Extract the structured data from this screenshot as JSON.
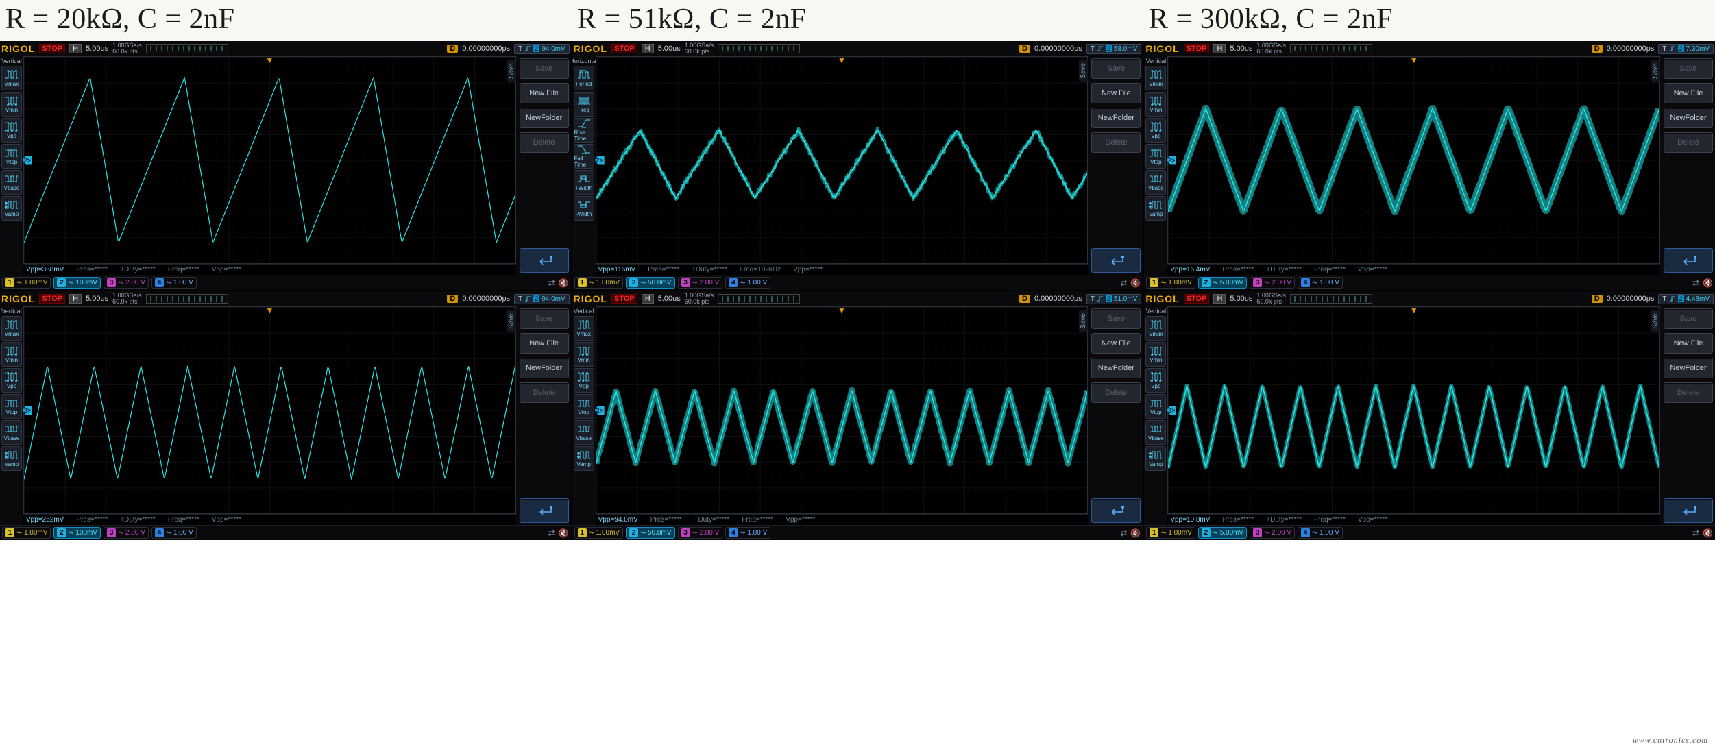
{
  "titles": [
    "R = 20kΩ, C = 2nF",
    "R = 51kΩ, C = 2nF",
    "R = 300kΩ, C = 2nF"
  ],
  "common": {
    "brand": "RIGOL",
    "run_state": "STOP",
    "h_label": "H",
    "timediv": "5.00us",
    "samp_rate": "1.00GSa/s",
    "samp_pts": "60.0k pts",
    "d_label": "D",
    "d_value": "0.00000000ps",
    "trig_T": "T",
    "trig_ch": "2",
    "buttons": {
      "save": "Save",
      "newfile": "New File",
      "newfolder": "NewFolder",
      "delete": "Delete"
    },
    "ch_prefix_coupling": "⏦",
    "channels": {
      "ch1": {
        "num": "1",
        "val": "1.00mV"
      },
      "ch3": {
        "num": "3",
        "val": "2.00 V"
      },
      "ch4": {
        "num": "4",
        "val": "1.00 V"
      }
    },
    "left_panels": {
      "vertical": {
        "header": "Vertical",
        "items": [
          "Vmax",
          "Vmin",
          "Vpp",
          "Vtop",
          "Vbase",
          "Vamp"
        ]
      },
      "horizontal": {
        "header": "Horizontal",
        "items": [
          "Period",
          "Freq",
          "Rise Time",
          "Fall Time",
          "+Width",
          "-Width"
        ]
      }
    },
    "save_label": "Save",
    "meas_placeholder": {
      "pres": "Pres=*****",
      "duty": "+Duty=*****",
      "freq": "Freq=*****",
      "vpp2": "Vpp=*****"
    }
  },
  "scopes": [
    {
      "id": "s0",
      "trigger": "94.0mV",
      "left_panel": "vertical",
      "ch2_scale": "100mV",
      "meas_vpp": "Vpp=368mV",
      "meas_freq": null,
      "waveform_color": "#26e8e8",
      "noise_amp": 0,
      "glow": 1,
      "cycles": 5.2,
      "asym": 0.7,
      "amp_rel": 0.8,
      "yoffset_rel": 0.0
    },
    {
      "id": "s1",
      "trigger": "58.0mV",
      "left_panel": "horizontal",
      "ch2_scale": "50.0mV",
      "meas_vpp": "Vpp=116mV",
      "meas_freq": "Freq=109kHz",
      "waveform_color": "#26e8e8",
      "noise_amp": 10,
      "glow": 3,
      "cycles": 6.2,
      "asym": 0.55,
      "amp_rel": 0.33,
      "yoffset_rel": 0.02
    },
    {
      "id": "s2",
      "trigger": "7.30mV",
      "left_panel": "vertical",
      "ch2_scale": "5.00mV",
      "meas_vpp": "Vpp=16.4mV",
      "meas_freq": null,
      "waveform_color": "#26e8e8",
      "noise_amp": 2,
      "glow": 9,
      "cycles": 6.5,
      "asym": 0.5,
      "amp_rel": 0.5,
      "yoffset_rel": 0.0
    },
    {
      "id": "s3",
      "trigger": "94.0mV",
      "left_panel": "vertical",
      "ch2_scale": "100mV",
      "meas_vpp": "Vpp=252mV",
      "meas_freq": null,
      "waveform_color": "#26e8e8",
      "noise_amp": 0,
      "glow": 1,
      "cycles": 10.5,
      "asym": 0.5,
      "amp_rel": 0.55,
      "yoffset_rel": 0.06
    },
    {
      "id": "s4",
      "trigger": "51.0mV",
      "left_panel": "vertical",
      "ch2_scale": "50.0mV",
      "meas_vpp": "Vpp=94.0mV",
      "meas_freq": null,
      "waveform_color": "#26e8e8",
      "noise_amp": 3,
      "glow": 7,
      "cycles": 12.5,
      "asym": 0.5,
      "amp_rel": 0.35,
      "yoffset_rel": 0.08
    },
    {
      "id": "s5",
      "trigger": "4.48mV",
      "left_panel": "vertical",
      "ch2_scale": "5.00mV",
      "meas_vpp": "Vpp=10.8mV",
      "meas_freq": null,
      "waveform_color": "#26e8e8",
      "noise_amp": 1,
      "glow": 5,
      "cycles": 13.0,
      "asym": 0.5,
      "amp_rel": 0.4,
      "yoffset_rel": 0.08
    }
  ],
  "watermark": "www.cntronics.com"
}
